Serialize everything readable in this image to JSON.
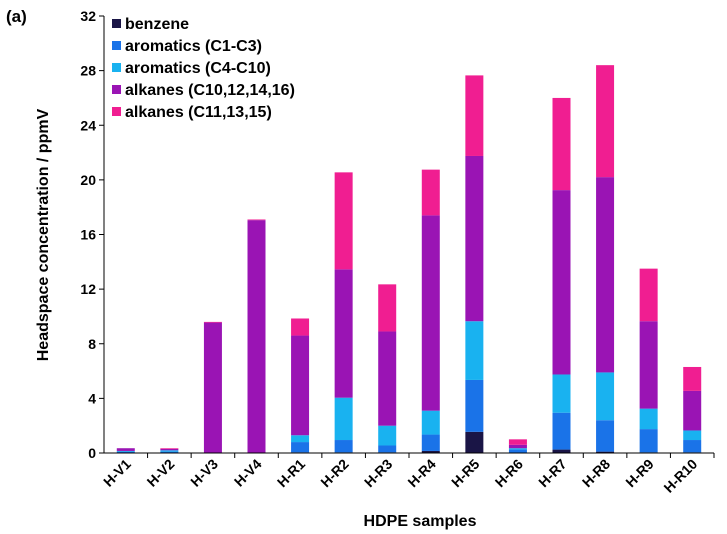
{
  "panel_label": "(a)",
  "colors": {
    "benzene": "#1a1546",
    "aromatics_c1_c3": "#1a73e8",
    "aromatics_c4_c10": "#19b2f0",
    "alkanes_even": "#9a14b4",
    "alkanes_odd": "#f01e91"
  },
  "chart_data": {
    "type": "bar",
    "stacked": true,
    "title": "",
    "xlabel": "HDPE samples",
    "ylabel": "Headspace concentration / ppmV",
    "ylim": [
      0,
      32
    ],
    "yticks": [
      0,
      4,
      8,
      12,
      16,
      20,
      24,
      28,
      32
    ],
    "grid": false,
    "legend_position": "top-left",
    "categories": [
      "H-V1",
      "H-V2",
      "H-V3",
      "H-V4",
      "H-R1",
      "H-R2",
      "H-R3",
      "H-R4",
      "H-R5",
      "H-R6",
      "H-R7",
      "H-R8",
      "H-R9",
      "H-R10"
    ],
    "series": [
      {
        "name": "benzene",
        "color_key": "benzene",
        "values": [
          0,
          0,
          0,
          0,
          0.05,
          0.05,
          0.05,
          0.15,
          1.55,
          0,
          0.25,
          0.1,
          0.05,
          0.05
        ]
      },
      {
        "name": "aromatics (C1-C3)",
        "color_key": "aromatics_c1_c3",
        "values": [
          0.1,
          0.1,
          0,
          0,
          0.75,
          0.9,
          0.5,
          1.2,
          3.8,
          0.25,
          2.7,
          2.3,
          1.7,
          0.9
        ]
      },
      {
        "name": "aromatics (C4-C10)",
        "color_key": "aromatics_c4_c10",
        "values": [
          0.05,
          0.1,
          0,
          0,
          0.5,
          3.1,
          1.45,
          1.75,
          4.3,
          0.1,
          2.8,
          3.5,
          1.5,
          0.7
        ]
      },
      {
        "name": "alkanes (C10,12,14,16)",
        "color_key": "alkanes_even",
        "values": [
          0.2,
          0.1,
          9.55,
          17.05,
          7.3,
          9.4,
          6.9,
          14.3,
          12.1,
          0.25,
          13.5,
          14.3,
          6.4,
          2.9
        ]
      },
      {
        "name": "alkanes (C11,13,15)",
        "color_key": "alkanes_odd",
        "values": [
          0,
          0.05,
          0.05,
          0.05,
          1.25,
          7.1,
          3.45,
          3.35,
          5.9,
          0.4,
          6.75,
          8.2,
          3.85,
          1.75
        ]
      }
    ]
  }
}
